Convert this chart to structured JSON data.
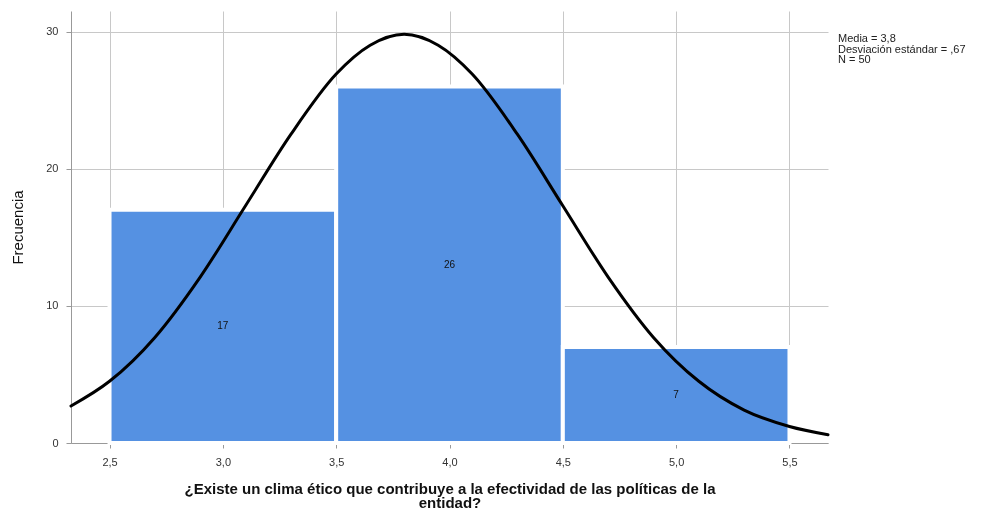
{
  "chart_data": {
    "type": "histogram",
    "xlabel": "¿Existe un clima ético que contribuye a la efectividad de las políticas de la entidad?",
    "ylabel": "Frecuencia",
    "bins": [
      2.5,
      3.5,
      4.5,
      5.5
    ],
    "values": [
      17,
      26,
      7
    ],
    "color": "#5591e2",
    "value_labels": [
      "17",
      "26",
      "7"
    ],
    "series": [
      {
        "type": "line",
        "color": "#000000",
        "x": [
          2.33,
          2.5,
          2.7,
          2.9,
          3.1,
          3.3,
          3.5,
          3.65,
          3.8,
          3.95,
          4.1,
          4.3,
          4.5,
          4.7,
          4.9,
          5.1,
          5.3,
          5.5,
          5.67
        ],
        "values": [
          2.7,
          4.5,
          7.7,
          12.1,
          17.3,
          22.5,
          26.9,
          29.0,
          29.8,
          29.0,
          26.9,
          22.5,
          17.3,
          12.1,
          7.7,
          4.5,
          2.4,
          1.2,
          0.6
        ]
      }
    ],
    "xlim": [
      2.33,
      5.67
    ],
    "xticks": [
      {
        "value": 2.5,
        "label": "2,5"
      },
      {
        "value": 3.0,
        "label": "3,0"
      },
      {
        "value": 3.5,
        "label": "3,5"
      },
      {
        "value": 4.0,
        "label": "4,0"
      },
      {
        "value": 4.5,
        "label": "4,5"
      },
      {
        "value": 5.0,
        "label": "5,0"
      },
      {
        "value": 5.5,
        "label": "5,5"
      }
    ],
    "ylim": [
      0,
      31.5
    ],
    "yticks": [
      0,
      10,
      20,
      30
    ],
    "grid": true,
    "annotations": [
      "Media = 3,8",
      "Desviación estándar = ,67",
      "N = 50"
    ]
  }
}
